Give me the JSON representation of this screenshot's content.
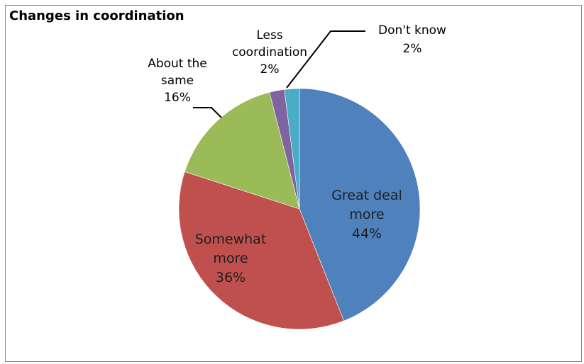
{
  "chart_data": {
    "type": "pie",
    "title": "Changes in coordination",
    "slices": [
      {
        "label_lines": [
          "Great deal",
          "more"
        ],
        "value": 44,
        "value_label": "44%",
        "color": "#4f81bd",
        "label_color": "#1f1f1f",
        "placement": "inside"
      },
      {
        "label_lines": [
          "Somewhat",
          "more"
        ],
        "value": 36,
        "value_label": "36%",
        "color": "#c0504d",
        "label_color": "#1f1f1f",
        "placement": "inside"
      },
      {
        "label_lines": [
          "About the",
          "same"
        ],
        "value": 16,
        "value_label": "16%",
        "color": "#9bbb59",
        "label_color": "#000000",
        "placement": "outside"
      },
      {
        "label_lines": [
          "Less",
          "coordination"
        ],
        "value": 2,
        "value_label": "2%",
        "color": "#8064a2",
        "label_color": "#000000",
        "placement": "outside"
      },
      {
        "label_lines": [
          "Don't know"
        ],
        "value": 2,
        "value_label": "2%",
        "color": "#4bacc6",
        "label_color": "#000000",
        "placement": "outside"
      }
    ],
    "start_angle": "12 o'clock",
    "direction": "clockwise",
    "legend": "none"
  }
}
